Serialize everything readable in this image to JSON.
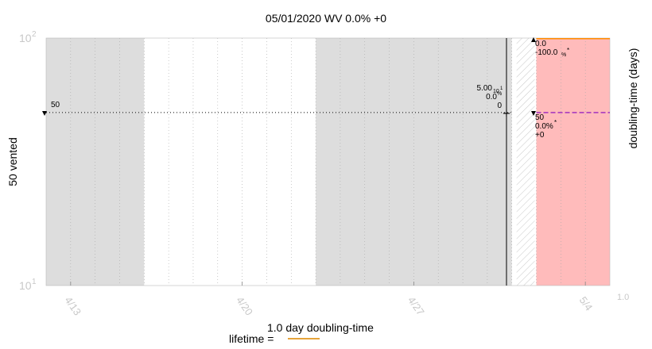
{
  "chart_data": {
    "type": "area",
    "title": "05/01/2020 WV 0.0% +0",
    "ylabel_left": "50 vented",
    "ylabel_right": "doubling-time (days)",
    "y_scale": "log",
    "ylim": [
      10,
      100
    ],
    "y_ticks_left": [
      {
        "value": 100,
        "base": "10",
        "exp": "2"
      },
      {
        "value": 10,
        "base": "10",
        "exp": "1"
      }
    ],
    "y_tick_right_label": "1.0",
    "x_range": [
      "2020-04-12",
      "2020-05-05"
    ],
    "x_ticks": [
      {
        "date": "2020-04-13",
        "label": "4/13"
      },
      {
        "date": "2020-04-20",
        "label": "4/20"
      },
      {
        "date": "2020-04-27",
        "label": "4/27"
      },
      {
        "date": "2020-05-04",
        "label": "5/4"
      }
    ],
    "shaded_periods": [
      {
        "start": "2020-04-12",
        "end": "2020-04-16",
        "color": "#dddddd"
      },
      {
        "start": "2020-04-23",
        "end": "2020-05-01",
        "color": "#dddddd"
      },
      {
        "start": "2020-05-02",
        "end": "2020-05-05",
        "color": "#ffbbbb"
      }
    ],
    "hatched_period": {
      "start": "2020-05-01",
      "end": "2020-05-02"
    },
    "series": [
      {
        "name": "vented",
        "value": 50,
        "style": "dotted",
        "color": "#000000"
      },
      {
        "name": "doubling-time",
        "value": 100,
        "style": "solid",
        "color": "#ff8c00"
      },
      {
        "value": 50,
        "style": "dashed",
        "color": "#8000c0"
      }
    ],
    "annotations": {
      "left_marker": "50",
      "mid_lines": [
        "5.00",
        "10",
        "1",
        "0.0",
        "%",
        "0"
      ],
      "right_top": [
        "0.0",
        "-100.0",
        "%",
        "*"
      ],
      "right_mid": [
        "50",
        "0.0%",
        "*",
        "+0"
      ]
    },
    "legend": {
      "title": "1.0 day doubling-time",
      "label": "lifetime =",
      "color": "#e6a43a"
    }
  },
  "colors": {
    "grey_band": "#dddddd",
    "pink_band": "#ffbbbb",
    "tick_text": "#c8c8c8"
  }
}
